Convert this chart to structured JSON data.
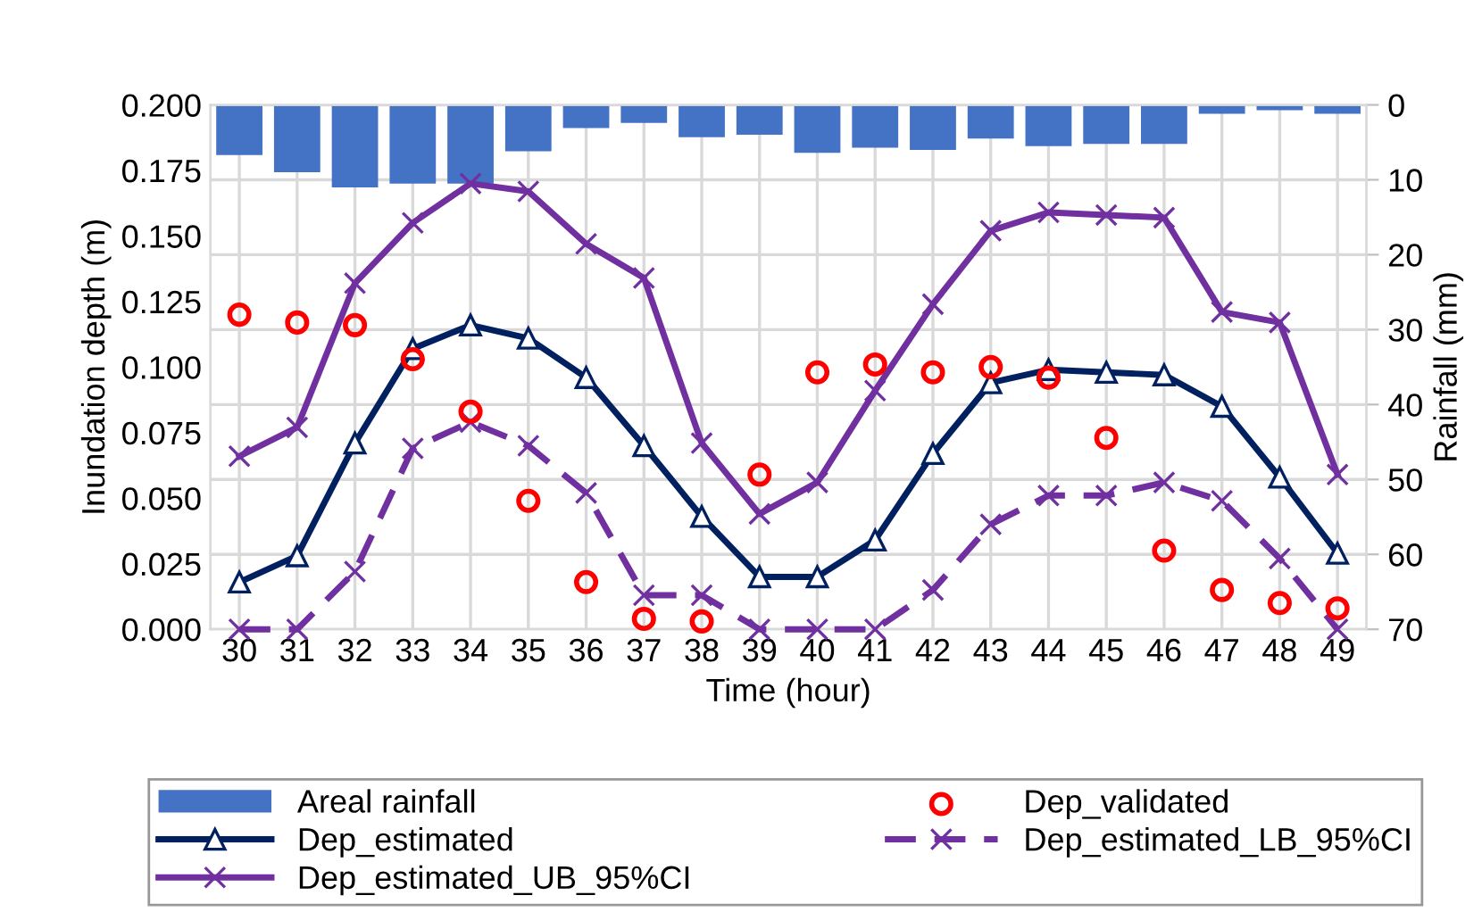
{
  "chart_data": {
    "type": "line",
    "xlabel": "Time (hour)",
    "ylabel": "Inundation depth (m)",
    "y2label": "Rainfall (mm)",
    "categories": [
      "30",
      "31",
      "32",
      "33",
      "34",
      "35",
      "36",
      "37",
      "38",
      "39",
      "40",
      "41",
      "42",
      "43",
      "44",
      "45",
      "46",
      "47",
      "48",
      "49"
    ],
    "ylim": [
      0,
      0.2
    ],
    "yticks": [
      {
        "value": 0,
        "label": "0.000"
      },
      {
        "value": 0.025,
        "label": "0.025"
      },
      {
        "value": 0.05,
        "label": "0.050"
      },
      {
        "value": 0.075,
        "label": "0.075"
      },
      {
        "value": 0.1,
        "label": "0.100"
      },
      {
        "value": 0.125,
        "label": "0.125"
      },
      {
        "value": 0.15,
        "label": "0.150"
      },
      {
        "value": 0.175,
        "label": "0.175"
      },
      {
        "value": 0.2,
        "label": "0.200"
      }
    ],
    "y2lim": [
      70,
      0
    ],
    "y2ticks": [
      0,
      10,
      20,
      30,
      40,
      50,
      60,
      70
    ],
    "grid": true,
    "legend": "bottom",
    "series": [
      {
        "name": "Areal rainfall",
        "type": "bar",
        "axis": "y2",
        "color": "#4472c4",
        "values": [
          6.7,
          9.0,
          11.0,
          10.5,
          10.5,
          6.2,
          3.1,
          2.4,
          4.3,
          4.0,
          6.4,
          5.7,
          6.0,
          4.5,
          5.5,
          5.2,
          5.2,
          1.2,
          0.7,
          1.2
        ]
      },
      {
        "name": "Dep_validated",
        "type": "scatter",
        "marker": "circle",
        "color": "#ff0000",
        "values": [
          0.12,
          0.117,
          0.116,
          0.103,
          0.083,
          0.049,
          0.018,
          0.004,
          0.003,
          0.059,
          0.098,
          0.101,
          0.098,
          0.1,
          0.096,
          0.073,
          0.03,
          0.015,
          0.01,
          0.008
        ]
      },
      {
        "name": "Dep_estimated",
        "marker": "triangle",
        "line_style": "solid",
        "color": "#002060",
        "values": [
          0.018,
          0.028,
          0.071,
          0.107,
          0.116,
          0.111,
          0.096,
          0.07,
          0.043,
          0.02,
          0.02,
          0.034,
          0.067,
          0.094,
          0.099,
          0.098,
          0.097,
          0.085,
          0.058,
          0.029
        ]
      },
      {
        "name": "Dep_estimated_LB_95%CI",
        "marker": "cross",
        "line_style": "dashed",
        "color": "#7030a0",
        "values": [
          0,
          0,
          0.022,
          0.069,
          0.079,
          0.07,
          0.052,
          0.013,
          0.013,
          0,
          0,
          0,
          0.015,
          0.04,
          0.051,
          0.051,
          0.056,
          0.049,
          0.027,
          0
        ]
      },
      {
        "name": "Dep_estimated_UB_95%CI",
        "marker": "cross",
        "line_style": "solid",
        "color": "#7030a0",
        "values": [
          0.066,
          0.077,
          0.132,
          0.155,
          0.17,
          0.167,
          0.147,
          0.134,
          0.071,
          0.044,
          0.056,
          0.091,
          0.124,
          0.152,
          0.159,
          0.158,
          0.157,
          0.121,
          0.117,
          0.059
        ]
      }
    ]
  }
}
